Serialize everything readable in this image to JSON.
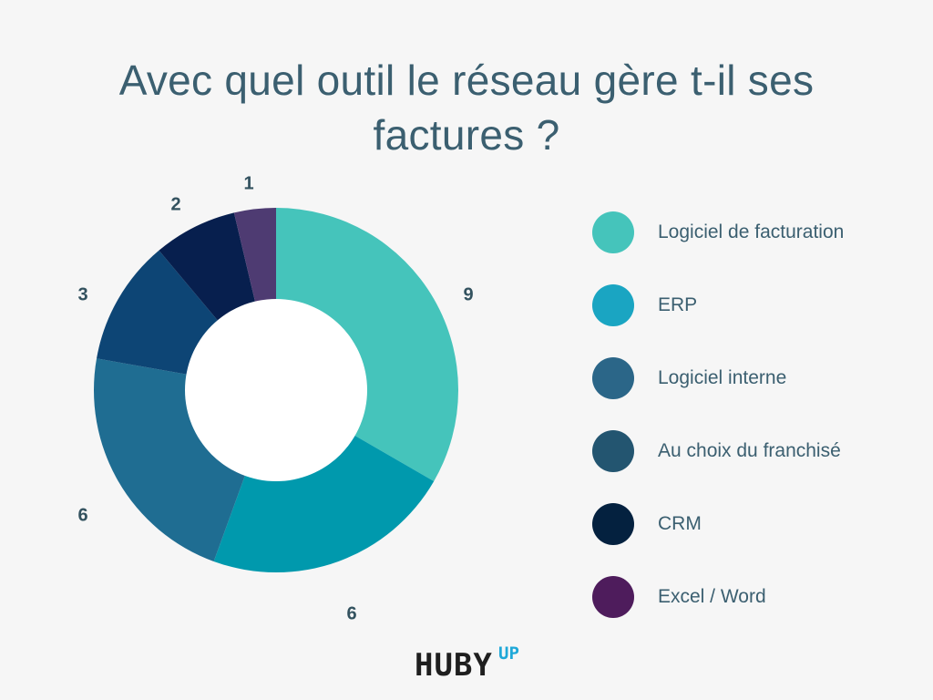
{
  "chart_data": {
    "type": "pie",
    "donut": true,
    "title": "Avec quel outil le réseau gère t-il ses factures ?",
    "categories": [
      "Logiciel de facturation",
      "ERP",
      "Logiciel interne",
      "Au choix du franchisé",
      "CRM",
      "Excel / Word"
    ],
    "values": [
      9,
      6,
      6,
      3,
      2,
      1
    ],
    "data_labels": [
      "9",
      "6",
      "6",
      "3",
      "2",
      "1"
    ],
    "slice_colors": [
      "#45c4bb",
      "#0099ad",
      "#1f6d92",
      "#0d4575",
      "#071f4e",
      "#4e3b72"
    ],
    "legend_colors": [
      "#45c4bb",
      "#1aa5c2",
      "#2b6688",
      "#235570",
      "#04213f",
      "#4e1c5c"
    ],
    "legend_placement": "right"
  },
  "logo": {
    "main": "HUBY",
    "superscript": "UP"
  }
}
